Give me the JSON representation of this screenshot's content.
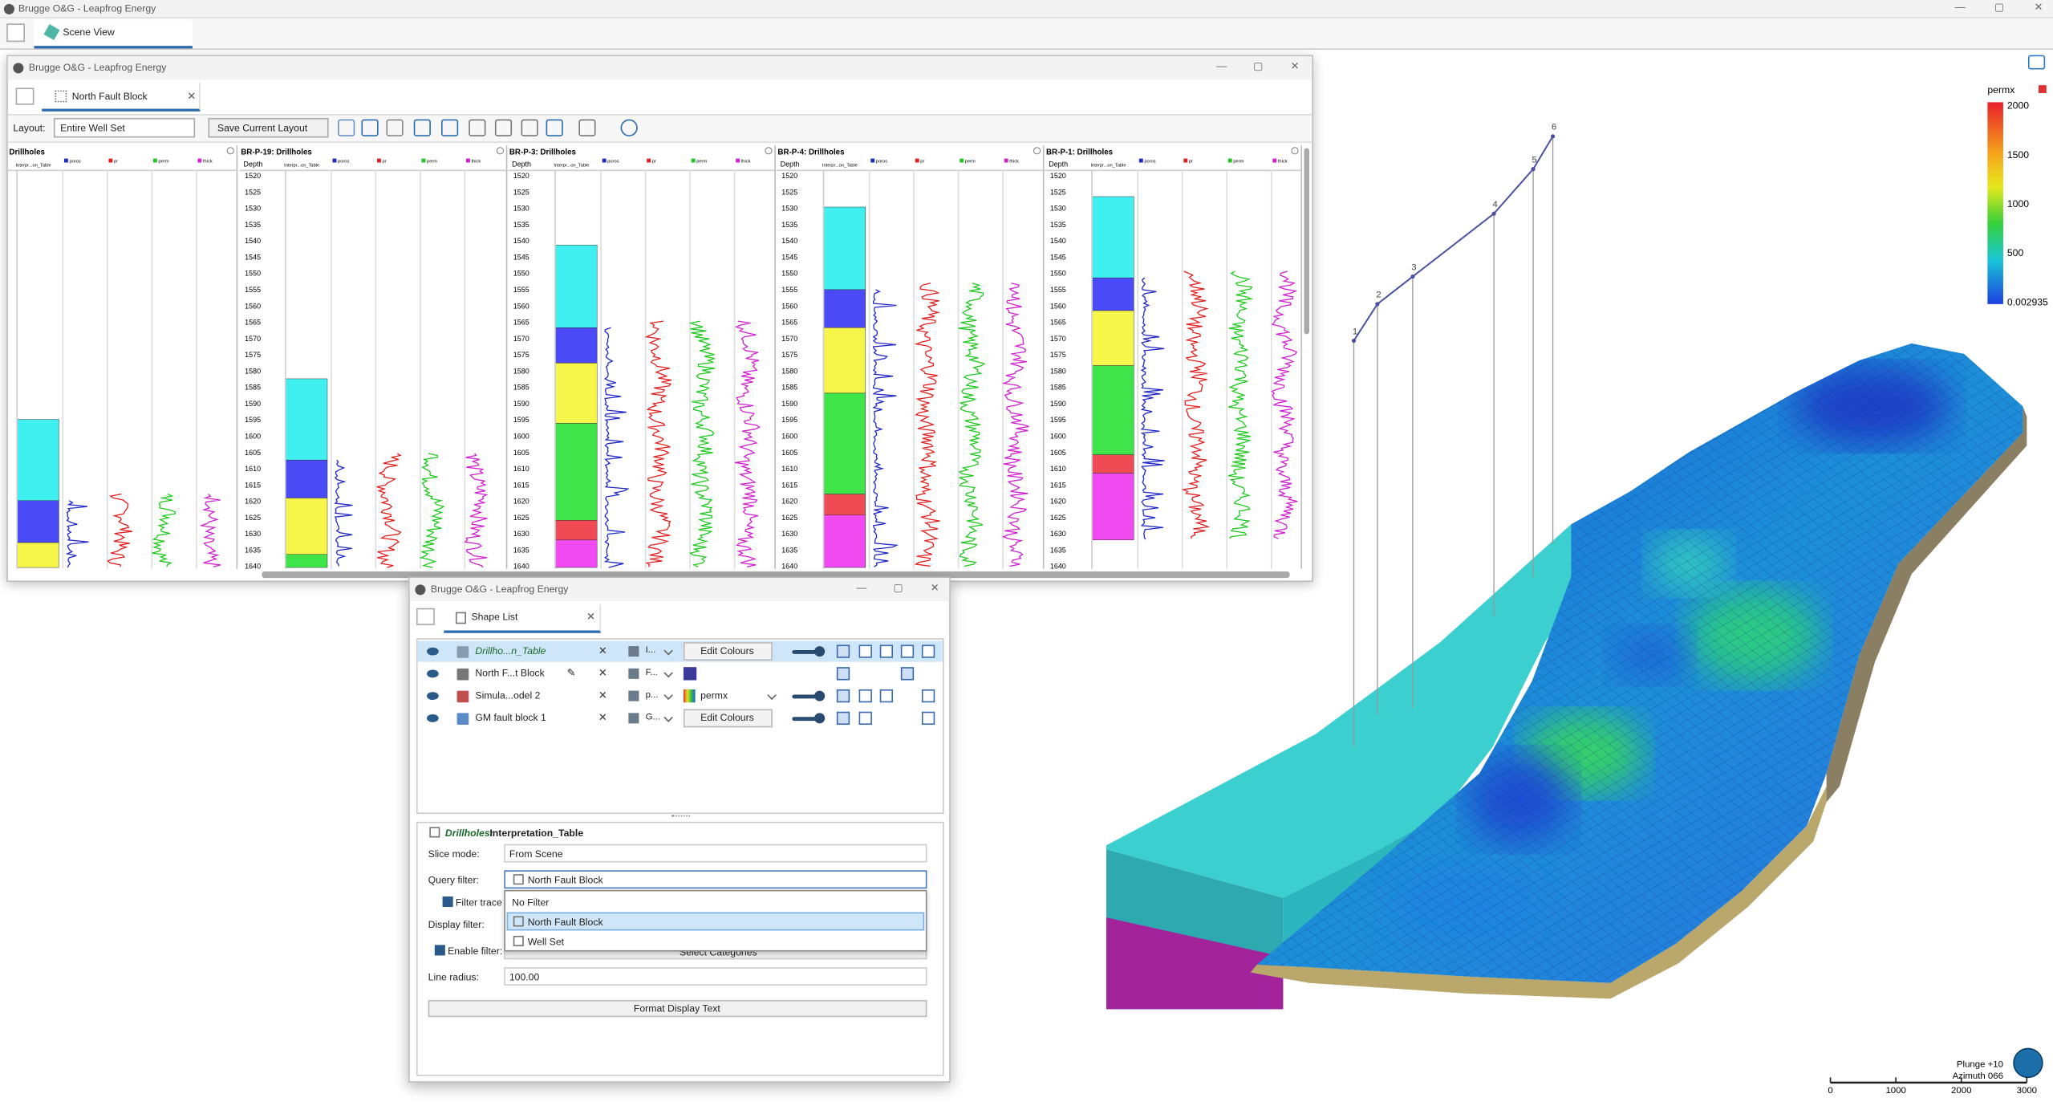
{
  "app": {
    "title": "Brugge O&G - Leapfrog Energy",
    "tab": "Scene View"
  },
  "log_window": {
    "title": "Brugge O&G - Leapfrog Energy",
    "tab": "North Fault Block",
    "layout_label": "Layout:",
    "layout_value": "Entire Well Set",
    "save_button": "Save Current Layout",
    "panels": [
      "Drillholes",
      "BR-P-19: Drillholes",
      "BR-P-3: Drillholes",
      "BR-P-4: Drillholes",
      "BR-P-1: Drillholes"
    ],
    "depth_label": "Depth",
    "track_label": "Interpr...on_Table",
    "columns": [
      "poros",
      "pr",
      "perm",
      "thick"
    ],
    "depths": [
      1520,
      1525,
      1530,
      1535,
      1540,
      1545,
      1550,
      1555,
      1560,
      1565,
      1570,
      1575,
      1580,
      1585,
      1590,
      1595,
      1600,
      1605,
      1610,
      1615,
      1620,
      1625,
      1630,
      1635,
      1640
    ]
  },
  "shape_window": {
    "title": "Brugge O&G - Leapfrog Energy",
    "tab": "Shape List",
    "rows": [
      {
        "name": "Drillho...n_Table",
        "style": "I...",
        "button": "Edit Colours"
      },
      {
        "name": "North F...t Block",
        "style": "F..."
      },
      {
        "name": "Simula...odel 2",
        "style": "p...",
        "property": "permx"
      },
      {
        "name": "GM fault block 1",
        "style": "G...",
        "button": "Edit Colours"
      }
    ],
    "properties": {
      "object": "Drillholes:",
      "table": "Interpretation_Table",
      "slice_mode_label": "Slice mode:",
      "slice_mode": "From Scene",
      "query_filter_label": "Query filter:",
      "query_filter": "North Fault Block",
      "filter_trace": "Filter trace",
      "display_filter_label": "Display filter:",
      "enable_filter": "Enable filter:",
      "select_categories": "Select Categories",
      "line_radius_label": "Line radius:",
      "line_radius": "100.00",
      "format_button": "Format Display Text"
    },
    "dropdown_options": [
      "No Filter",
      "North Fault Block",
      "Well Set"
    ]
  },
  "scene": {
    "legend_title": "permx",
    "legend_ticks": [
      2000,
      1500,
      1000,
      500,
      0.002935
    ],
    "well_labels": [
      "1",
      "2",
      "3",
      "4",
      "5",
      "6"
    ],
    "plunge": "Plunge +10",
    "azimuth": "Azimuth 066",
    "scale_ticks": [
      0,
      1000,
      2000,
      3000
    ]
  }
}
